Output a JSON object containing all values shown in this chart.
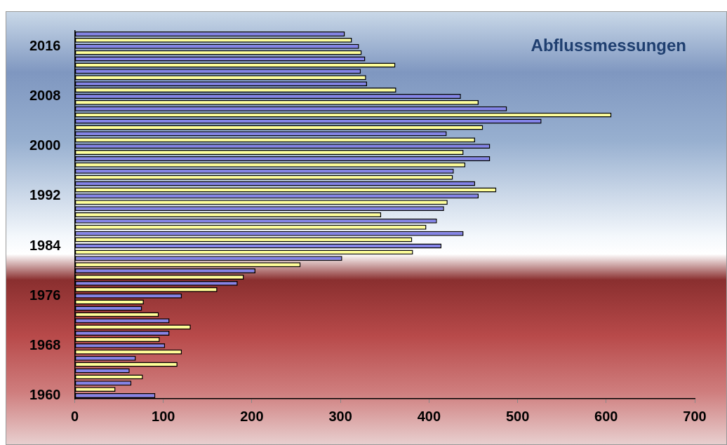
{
  "chart_data": {
    "type": "bar",
    "orientation": "horizontal",
    "title": "Abflussmessungen",
    "categories": [
      null,
      null,
      "2016",
      null,
      null,
      null,
      null,
      null,
      null,
      null,
      "2008",
      null,
      null,
      null,
      null,
      null,
      null,
      null,
      "2000",
      null,
      null,
      null,
      null,
      null,
      null,
      null,
      "1992",
      null,
      null,
      null,
      null,
      null,
      null,
      null,
      "1984",
      null,
      null,
      null,
      null,
      null,
      null,
      null,
      "1976",
      null,
      null,
      null,
      null,
      null,
      null,
      null,
      "1968",
      null,
      null,
      null,
      null,
      null,
      null,
      null,
      "1960"
    ],
    "values": [
      305,
      313,
      321,
      324,
      328,
      362,
      323,
      329,
      330,
      363,
      436,
      456,
      488,
      606,
      527,
      461,
      420,
      452,
      469,
      439,
      469,
      441,
      428,
      427,
      452,
      476,
      456,
      421,
      417,
      346,
      409,
      397,
      439,
      381,
      414,
      382,
      302,
      255,
      204,
      191,
      184,
      161,
      121,
      78,
      76,
      95,
      107,
      131,
      107,
      96,
      102,
      121,
      69,
      116,
      62,
      77,
      64,
      46,
      91
    ],
    "colors": [
      "#8484e8",
      "#ffff99",
      "#8484e8",
      "#ffff99",
      "#8484e8",
      "#ffff99",
      "#8484e8",
      "#ffff99",
      "#8484e8",
      "#ffff99",
      "#8484e8",
      "#ffff99",
      "#8484e8",
      "#ffff99",
      "#8484e8",
      "#ffff99",
      "#8484e8",
      "#ffff99",
      "#8484e8",
      "#ffff99",
      "#8484e8",
      "#ffff99",
      "#8484e8",
      "#ffff99",
      "#8484e8",
      "#ffff99",
      "#8484e8",
      "#ffff99",
      "#8484e8",
      "#ffff99",
      "#8484e8",
      "#ffff99",
      "#8484e8",
      "#ffff99",
      "#8484e8",
      "#ffff99",
      "#8484e8",
      "#ffff99",
      "#8484e8",
      "#ffff99",
      "#8484e8",
      "#ffff99",
      "#8484e8",
      "#ffff99",
      "#8484e8",
      "#ffff99",
      "#8484e8",
      "#ffff99",
      "#8484e8",
      "#ffff99",
      "#8484e8",
      "#ffff99",
      "#8484e8",
      "#ffff99",
      "#8484e8",
      "#ffff99",
      "#8484e8",
      "#ffff99",
      "#8484e8"
    ],
    "xlim": [
      0,
      700
    ],
    "xticks": [
      0,
      100,
      200,
      300,
      400,
      500,
      600,
      700
    ],
    "grid": false
  }
}
